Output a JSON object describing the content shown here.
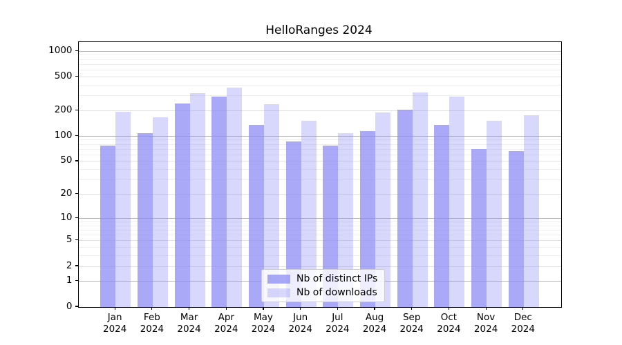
{
  "title": "HelloRanges 2024",
  "chart_data": {
    "type": "bar",
    "title": "HelloRanges 2024",
    "scale": "log1p (symlog-like, shows 0)",
    "grid": "horizontal only, minors faint, powers of 10 darker",
    "categories": [
      "Jan",
      "Feb",
      "Mar",
      "Apr",
      "May",
      "Jun",
      "Jul",
      "Aug",
      "Sep",
      "Oct",
      "Nov",
      "Dec"
    ],
    "category_second_line": "2024",
    "series": [
      {
        "name": "Nb of distinct IPs",
        "color": "rgba(140,140,246,0.75)",
        "values": [
          77,
          109,
          244,
          291,
          135,
          87,
          77,
          114,
          206,
          136,
          70,
          66
        ]
      },
      {
        "name": "Nb of downloads",
        "color": "rgba(140,140,246,0.34)",
        "values": [
          193,
          168,
          321,
          377,
          238,
          152,
          109,
          190,
          326,
          291,
          152,
          177
        ]
      }
    ],
    "yticks": [
      0,
      1,
      2,
      5,
      10,
      20,
      50,
      100,
      200,
      500,
      1000
    ],
    "minor_gridlines": [
      3,
      4,
      6,
      7,
      8,
      9,
      30,
      40,
      60,
      70,
      80,
      90,
      300,
      400,
      600,
      700,
      800,
      900
    ],
    "power10_gridlines": [
      1,
      10,
      100,
      1000
    ],
    "xlabel": "",
    "ylabel": "",
    "ylim": [
      0,
      1280
    ],
    "legend_position": "lower center"
  }
}
